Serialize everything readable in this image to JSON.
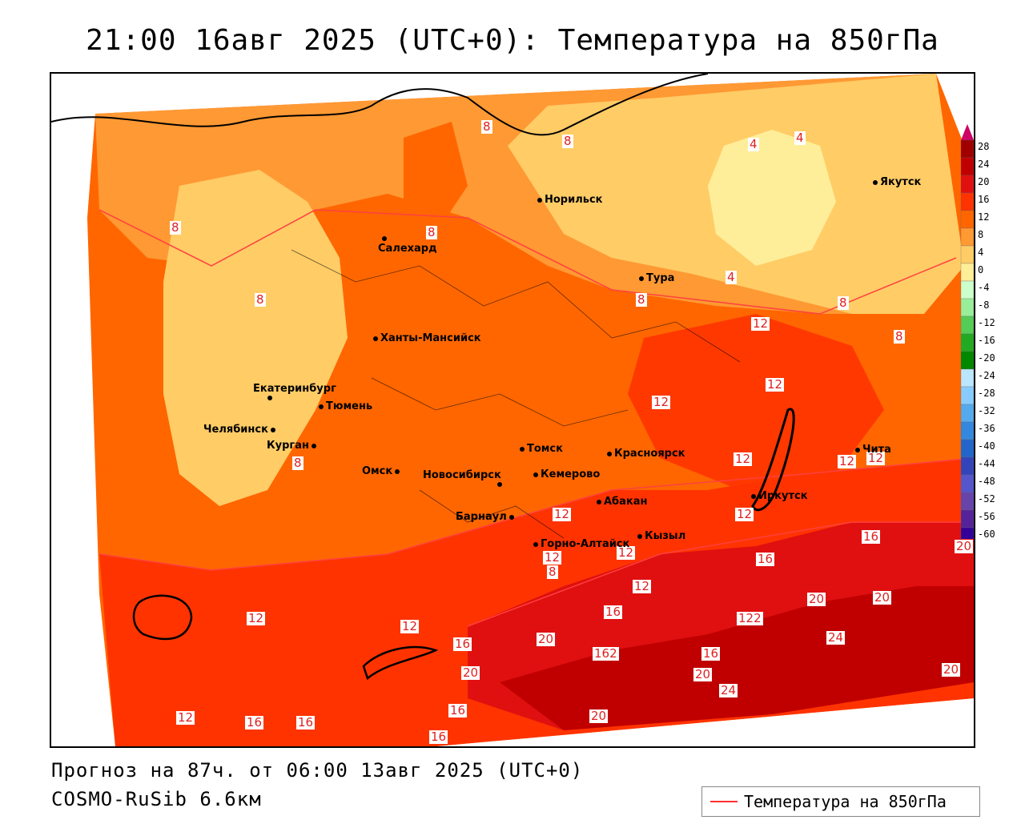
{
  "title": "21:00 16авг 2025 (UTC+0): Температура на 850гПа",
  "footer": {
    "forecast": "Прогноз на 87ч. от 06:00 13авг 2025 (UTC+0)",
    "model": "COSMO-RuSib 6.6км"
  },
  "legend": {
    "label": "Температура на 850гПа",
    "line_color": "#ff3030"
  },
  "colorbar": {
    "ticks": [
      "28",
      "24",
      "20",
      "16",
      "12",
      "8",
      "4",
      "0",
      "-4",
      "-8",
      "-12",
      "-16",
      "-20",
      "-24",
      "-28",
      "-32",
      "-36",
      "-40",
      "-44",
      "-48",
      "-52",
      "-56",
      "-60"
    ],
    "colors": [
      "#cc0066",
      "#a00000",
      "#c00000",
      "#e01010",
      "#ff3300",
      "#ff6600",
      "#ff9933",
      "#ffcc66",
      "#ffee99",
      "#ccffcc",
      "#99ee99",
      "#55cc55",
      "#22aa22",
      "#008800",
      "#bbe6ff",
      "#88ccff",
      "#55aaee",
      "#3388dd",
      "#2266cc",
      "#3344bb",
      "#5555cc",
      "#6644aa",
      "#552299",
      "#330099"
    ]
  },
  "cities": [
    {
      "name": "Норильск"
    },
    {
      "name": "Якутск"
    },
    {
      "name": "Салехард"
    },
    {
      "name": "Тура"
    },
    {
      "name": "Ханты-Мансийск"
    },
    {
      "name": "Екатеринбург"
    },
    {
      "name": "Тюмень"
    },
    {
      "name": "Челябинск"
    },
    {
      "name": "Курган"
    },
    {
      "name": "Омск"
    },
    {
      "name": "Томск"
    },
    {
      "name": "Новосибирск"
    },
    {
      "name": "Кемерово"
    },
    {
      "name": "Красноярск"
    },
    {
      "name": "Абакан"
    },
    {
      "name": "Иркутск"
    },
    {
      "name": "Чита"
    },
    {
      "name": "Барнаул"
    },
    {
      "name": "Горно-Алтайск"
    },
    {
      "name": "Кызыл"
    }
  ],
  "contour_labels": [
    "8",
    "8",
    "4",
    "4",
    "8",
    "8",
    "8",
    "4",
    "8",
    "8",
    "12",
    "8",
    "12",
    "12",
    "12",
    "12",
    "12",
    "12",
    "8",
    "12",
    "12",
    "12",
    "12",
    "8",
    "16",
    "16",
    "20",
    "12",
    "16",
    "20",
    "12",
    "12",
    "16",
    "20",
    "162",
    "122",
    "24",
    "20",
    "16",
    "20",
    "20",
    "20",
    "16",
    "16",
    "16",
    "16",
    "24",
    "20"
  ]
}
